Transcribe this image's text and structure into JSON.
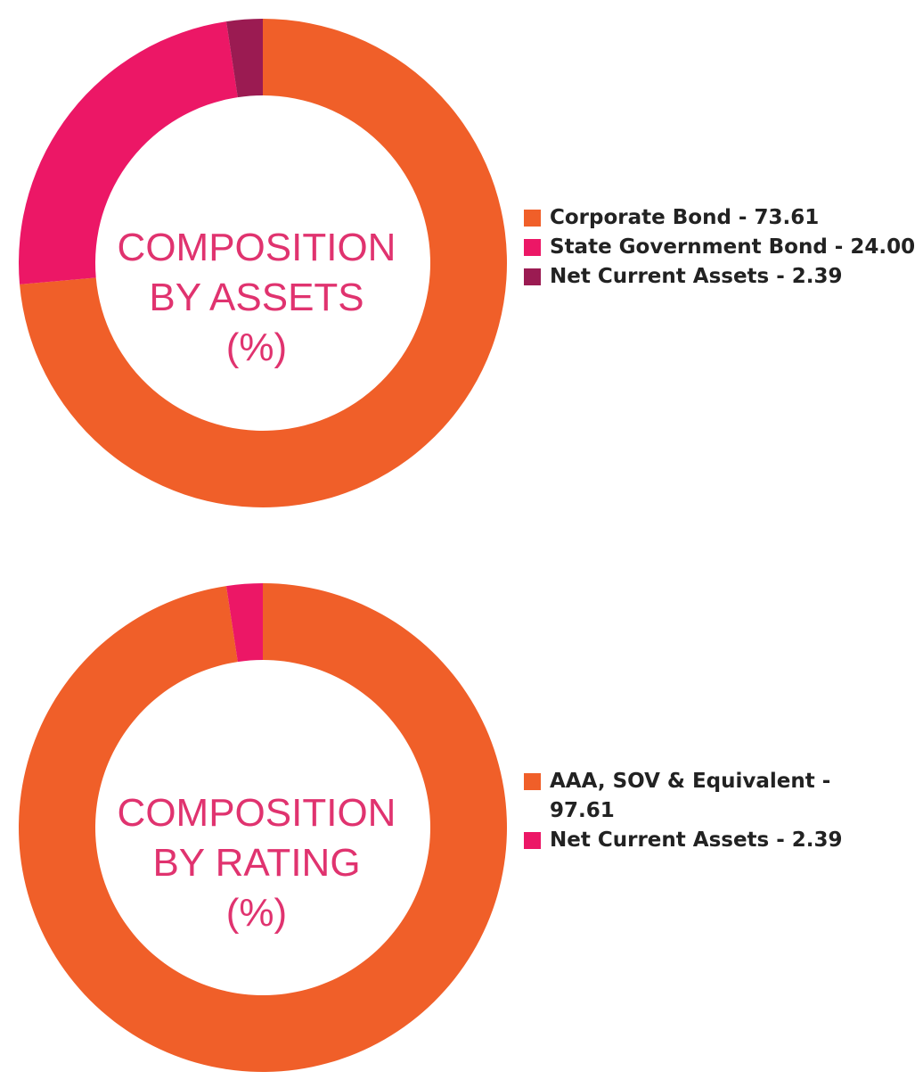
{
  "chart_data": [
    {
      "type": "pie",
      "title_lines": [
        "COMPOSITION",
        "BY ASSETS",
        "(%)"
      ],
      "categories": [
        "Corporate Bond",
        "State Government Bond",
        "Net Current Assets"
      ],
      "values": [
        73.61,
        24.0,
        2.39
      ],
      "value_labels": [
        "73.61",
        "24.00",
        "2.39"
      ],
      "legend_labels": [
        "Corporate Bond - 73.61",
        "State Government Bond - 24.00",
        "Net Current Assets - 2.39"
      ],
      "colors": [
        "#f05f29",
        "#ec1766",
        "#9b1b52"
      ],
      "legend_position": "right"
    },
    {
      "type": "pie",
      "title_lines": [
        "COMPOSITION",
        "BY RATING",
        "(%)"
      ],
      "categories": [
        "AAA, SOV & Equivalent",
        "Net Current Assets"
      ],
      "values": [
        97.61,
        2.39
      ],
      "value_labels": [
        "97.61",
        "2.39"
      ],
      "legend_labels": [
        "AAA, SOV & Equivalent - 97.61",
        "Net Current Assets - 2.39"
      ],
      "colors": [
        "#f05f29",
        "#ec1766"
      ],
      "legend_position": "right"
    }
  ]
}
